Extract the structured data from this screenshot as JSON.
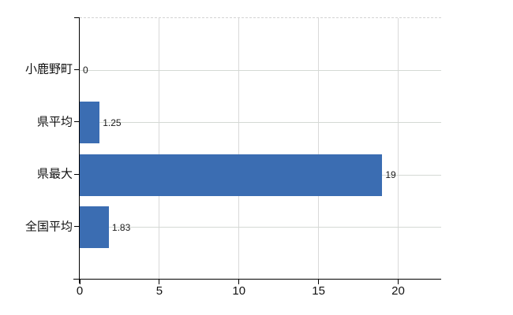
{
  "chart_data": {
    "type": "bar",
    "orientation": "horizontal",
    "title": "",
    "xlabel": "",
    "ylabel": "",
    "categories": [
      "小鹿野町",
      "県平均",
      "県最大",
      "全国平均"
    ],
    "values": [
      0,
      1.25,
      19,
      1.83
    ],
    "value_labels": [
      "0",
      "1.25",
      "19",
      "1.83"
    ],
    "xticks": [
      0,
      5,
      10,
      15,
      20
    ],
    "xtick_labels": [
      "0",
      "5",
      "10",
      "15",
      "20"
    ],
    "xlim": [
      0,
      22.7
    ],
    "grid": "on",
    "legend_position": "none",
    "colors": {
      "bar": "#3b6db2",
      "grid_vertical": "#d9d9d9",
      "grid_horizontal": "#d4d9d4",
      "top_border": "#d3d3d3",
      "axis": "#000000",
      "text": "#111111"
    }
  }
}
